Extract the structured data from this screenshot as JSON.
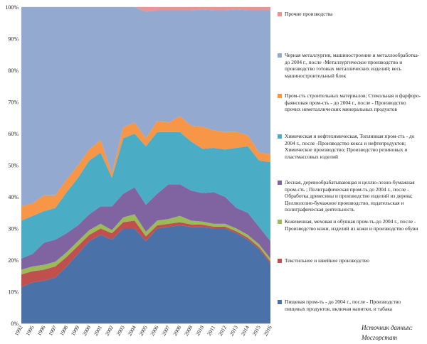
{
  "chart_data": {
    "type": "area",
    "stacked": true,
    "ylim": [
      0,
      100
    ],
    "y_ticks": [
      "0%",
      "10%",
      "20%",
      "30%",
      "40%",
      "50%",
      "60%",
      "70%",
      "80%",
      "90%",
      "100%"
    ],
    "x": [
      "1992",
      "1995",
      "1996",
      "1997",
      "1998",
      "1999",
      "2000",
      "2001",
      "2002",
      "2003",
      "2004",
      "2005",
      "2006",
      "2007",
      "2008",
      "2009",
      "2010",
      "2011",
      "2012",
      "2013",
      "2014",
      "2015",
      "2016"
    ],
    "series": [
      {
        "name": "Пищевая пром-ть - до 2004 г., после - Производство пищевых продуктов, включая напитки, и табака",
        "color": "#4a72a8",
        "values": [
          11.5,
          13.0,
          13.5,
          14.5,
          18.0,
          22.0,
          26.0,
          28.0,
          26.5,
          30.0,
          30.0,
          26.0,
          30.0,
          30.5,
          31.0,
          30.5,
          30.5,
          30.0,
          30.0,
          28.5,
          26.5,
          23.5,
          19.0
        ]
      },
      {
        "name": "Текстильное и швейное производство",
        "color": "#c0504d",
        "values": [
          4.0,
          3.5,
          3.5,
          3.5,
          3.0,
          2.5,
          2.0,
          2.0,
          2.0,
          2.0,
          2.5,
          1.5,
          1.0,
          1.0,
          1.0,
          0.8,
          0.7,
          0.6,
          0.6,
          0.6,
          0.6,
          0.6,
          0.6
        ]
      },
      {
        "name": "Кожевенная, меховая и обувная пром-ть-до 2004 г., после - Производство кожи, изделий из кожи и производство обуви",
        "color": "#9bbb59",
        "values": [
          1.5,
          1.5,
          1.5,
          1.5,
          1.5,
          1.5,
          1.5,
          1.5,
          1.0,
          1.5,
          2.0,
          1.5,
          1.5,
          1.5,
          2.0,
          1.2,
          1.0,
          0.9,
          0.9,
          0.9,
          0.9,
          0.9,
          0.9
        ]
      },
      {
        "name": "Лесная, деревообрабатывающая и целлю-лозно-бумажная пром-сть ; Полиграфическая пром-ть до 2004 г., после - Обработка древесины и производство изделий из дерева; Целлюлозно-бумажное производство, издательская и полиграфическая деятельность",
        "color": "#8064a2",
        "values": [
          3.5,
          4.0,
          7.0,
          7.0,
          6.0,
          5.0,
          5.0,
          5.5,
          7.5,
          7.5,
          8.5,
          8.5,
          8.5,
          11.0,
          10.0,
          9.5,
          9.0,
          10.0,
          8.5,
          6.5,
          7.0,
          5.5,
          5.5
        ]
      },
      {
        "name": "Химическая и нефтехимическая, Топливная пром-сть - до 2004 г., после -Производство кокса и нефтепродуктов; Химическое производство; Производство резиновых и пластмассовых изделий",
        "color": "#4bacc6",
        "values": [
          12.0,
          12.0,
          10.0,
          10.0,
          13.0,
          15.0,
          17.0,
          17.0,
          9.0,
          17.5,
          17.0,
          18.5,
          19.5,
          16.5,
          16.5,
          15.5,
          14.0,
          14.0,
          15.0,
          19.0,
          21.0,
          21.0,
          25.0
        ]
      },
      {
        "name": "Пром-сть строительных материалов; Стекольная и фарфоро-фаянсовая пром-сть - до 2004 г., после - Производство прочих неметаллических минеральных продуктов",
        "color": "#f79646",
        "values": [
          4.5,
          4.0,
          5.0,
          4.0,
          4.0,
          4.0,
          3.5,
          4.0,
          1.5,
          3.5,
          3.5,
          2.5,
          3.5,
          3.0,
          5.0,
          5.0,
          7.0,
          5.5,
          5.5,
          5.0,
          3.5,
          2.5,
          2.5
        ]
      },
      {
        "name": "Черная металлургия, машиностроение и металлообработка-до 2004 г., после -Металлургическое производство и производство готовых металлических изделий; весь машиностроительный блок",
        "color": "#93a9d0",
        "values": [
          63.0,
          62.0,
          59.5,
          59.5,
          54.5,
          50.0,
          45.0,
          42.0,
          52.5,
          38.0,
          36.5,
          40.0,
          35.0,
          35.5,
          33.5,
          36.5,
          37.0,
          38.0,
          38.5,
          38.7,
          39.5,
          45.0,
          45.5
        ]
      },
      {
        "name": "Прочие производства",
        "color": "#e89494",
        "values": [
          0,
          0,
          0,
          0,
          0,
          0,
          0,
          0,
          0,
          0,
          0,
          1.5,
          1.0,
          1.0,
          1.0,
          1.0,
          0.8,
          1.0,
          1.0,
          0.8,
          1.0,
          1.0,
          1.0
        ]
      }
    ]
  },
  "source_label": "Источник данных:",
  "source_name": "Мосгорстат"
}
